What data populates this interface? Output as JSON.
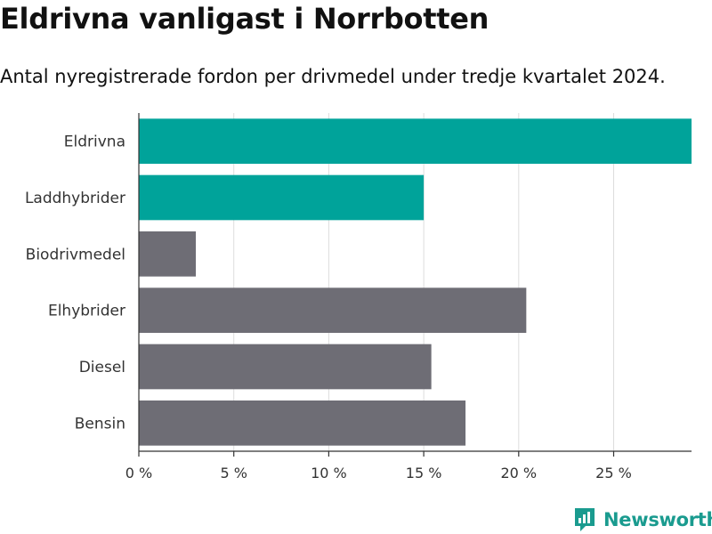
{
  "header": {
    "title": "Eldrivna vanligast i Norrbotten",
    "subtitle": "Antal nyregistrerade fordon per drivmedel under tredje kvartalet 2024."
  },
  "chart_data": {
    "type": "bar",
    "orientation": "horizontal",
    "categories": [
      "Eldrivna",
      "Laddhybrider",
      "Biodrivmedel",
      "Elhybrider",
      "Diesel",
      "Bensin"
    ],
    "values": [
      29.1,
      15.0,
      3.0,
      20.4,
      15.4,
      17.2
    ],
    "highlighted": [
      true,
      true,
      false,
      false,
      false,
      false
    ],
    "xticks": [
      0,
      5,
      10,
      15,
      20,
      25
    ],
    "tick_suffix": " %",
    "xlim": [
      0,
      29.1
    ],
    "grid": true,
    "colors": {
      "highlight": "#00a39a",
      "default": "#6e6d75",
      "grid": "#dddddd",
      "axis": "#333333"
    }
  },
  "logo": {
    "text": "Newsworthy",
    "color": "#1a9b8f"
  }
}
